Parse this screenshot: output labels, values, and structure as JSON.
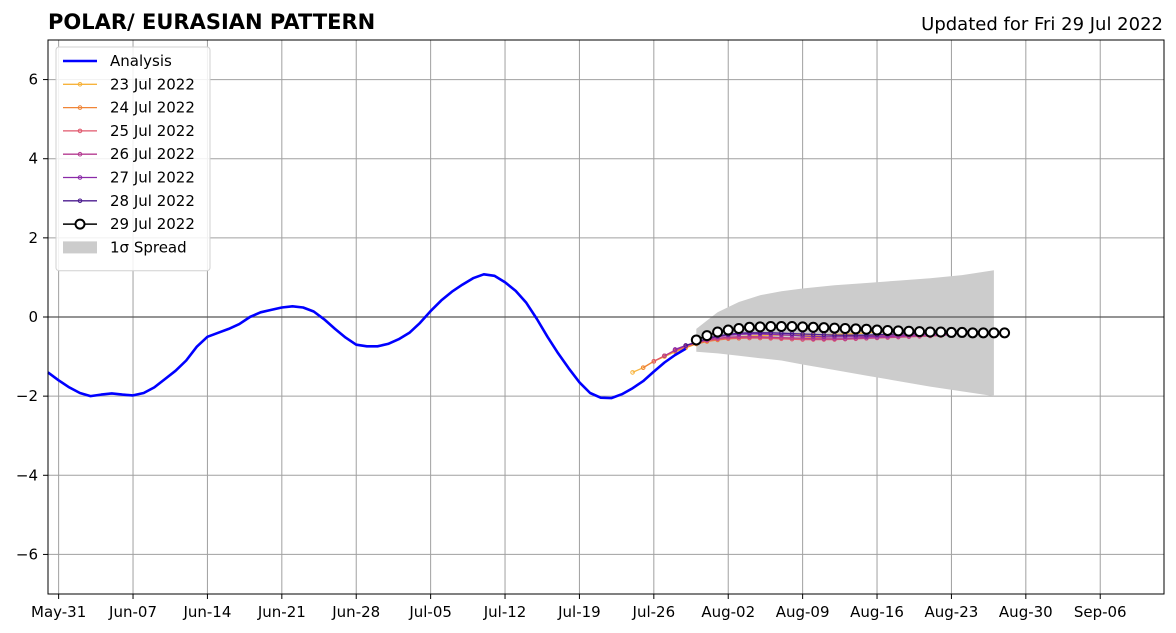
{
  "chart_data": {
    "type": "line",
    "title": "POLAR/ EURASIAN  PATTERN",
    "subtitle": "Updated for Fri 29 Jul 2022",
    "xlabel": "",
    "ylabel": "",
    "ylim": [
      -7,
      7
    ],
    "yticks": [
      -6,
      -4,
      -2,
      0,
      2,
      4,
      6
    ],
    "ytick_labels": [
      "−6",
      "−4",
      "−2",
      "0",
      "2",
      "4",
      "6"
    ],
    "xlim": [
      "2022-05-30",
      "2022-09-12"
    ],
    "xticks": [
      "2022-05-31",
      "2022-06-07",
      "2022-06-14",
      "2022-06-21",
      "2022-06-28",
      "2022-07-05",
      "2022-07-12",
      "2022-07-19",
      "2022-07-26",
      "2022-08-02",
      "2022-08-09",
      "2022-08-16",
      "2022-08-23",
      "2022-08-30",
      "2022-09-06"
    ],
    "xtick_labels": [
      "May-31",
      "Jun-07",
      "Jun-14",
      "Jun-21",
      "Jun-28",
      "Jul-05",
      "Jul-12",
      "Jul-19",
      "Jul-26",
      "Aug-02",
      "Aug-09",
      "Aug-16",
      "Aug-23",
      "Aug-30",
      "Sep-06"
    ],
    "grid": true,
    "zero_line": true,
    "legend_position": "top-left",
    "analysis": {
      "name": "Analysis",
      "color": "#0000ff",
      "points": [
        [
          "2022-05-30",
          -1.4
        ],
        [
          "2022-05-31",
          -1.6
        ],
        [
          "2022-06-01",
          -1.78
        ],
        [
          "2022-06-02",
          -1.92
        ],
        [
          "2022-06-03",
          -2.0
        ],
        [
          "2022-06-04",
          -1.96
        ],
        [
          "2022-06-05",
          -1.93
        ],
        [
          "2022-06-06",
          -1.96
        ],
        [
          "2022-06-07",
          -1.98
        ],
        [
          "2022-06-08",
          -1.92
        ],
        [
          "2022-06-09",
          -1.78
        ],
        [
          "2022-06-10",
          -1.57
        ],
        [
          "2022-06-11",
          -1.36
        ],
        [
          "2022-06-12",
          -1.1
        ],
        [
          "2022-06-13",
          -0.75
        ],
        [
          "2022-06-14",
          -0.5
        ],
        [
          "2022-06-15",
          -0.4
        ],
        [
          "2022-06-16",
          -0.3
        ],
        [
          "2022-06-17",
          -0.18
        ],
        [
          "2022-06-18",
          0.0
        ],
        [
          "2022-06-19",
          0.12
        ],
        [
          "2022-06-20",
          0.18
        ],
        [
          "2022-06-21",
          0.24
        ],
        [
          "2022-06-22",
          0.27
        ],
        [
          "2022-06-23",
          0.24
        ],
        [
          "2022-06-24",
          0.14
        ],
        [
          "2022-06-25",
          -0.06
        ],
        [
          "2022-06-26",
          -0.3
        ],
        [
          "2022-06-27",
          -0.52
        ],
        [
          "2022-06-28",
          -0.7
        ],
        [
          "2022-06-29",
          -0.74
        ],
        [
          "2022-06-30",
          -0.74
        ],
        [
          "2022-07-01",
          -0.68
        ],
        [
          "2022-07-02",
          -0.56
        ],
        [
          "2022-07-03",
          -0.4
        ],
        [
          "2022-07-04",
          -0.15
        ],
        [
          "2022-07-05",
          0.15
        ],
        [
          "2022-07-06",
          0.42
        ],
        [
          "2022-07-07",
          0.64
        ],
        [
          "2022-07-08",
          0.82
        ],
        [
          "2022-07-09",
          0.98
        ],
        [
          "2022-07-10",
          1.08
        ],
        [
          "2022-07-11",
          1.04
        ],
        [
          "2022-07-12",
          0.88
        ],
        [
          "2022-07-13",
          0.66
        ],
        [
          "2022-07-14",
          0.36
        ],
        [
          "2022-07-15",
          -0.05
        ],
        [
          "2022-07-16",
          -0.5
        ],
        [
          "2022-07-17",
          -0.92
        ],
        [
          "2022-07-18",
          -1.3
        ],
        [
          "2022-07-19",
          -1.65
        ],
        [
          "2022-07-20",
          -1.92
        ],
        [
          "2022-07-21",
          -2.04
        ],
        [
          "2022-07-22",
          -2.05
        ],
        [
          "2022-07-23",
          -1.95
        ],
        [
          "2022-07-24",
          -1.8
        ],
        [
          "2022-07-25",
          -1.62
        ],
        [
          "2022-07-26",
          -1.38
        ],
        [
          "2022-07-27",
          -1.15
        ],
        [
          "2022-07-28",
          -0.96
        ],
        [
          "2022-07-29",
          -0.8
        ]
      ]
    },
    "series": [
      {
        "name": "23 Jul 2022",
        "color": "#f7b33b",
        "start": "2022-07-24",
        "values": [
          -1.4,
          -1.28,
          -1.12,
          -1.0,
          -0.88,
          -0.78,
          -0.68,
          -0.62,
          -0.56,
          -0.52,
          -0.5,
          -0.48,
          -0.47,
          -0.46,
          -0.46,
          -0.46,
          -0.46,
          -0.46,
          -0.45,
          -0.44,
          -0.43,
          -0.42,
          -0.4,
          -0.38,
          -0.36,
          -0.35,
          -0.34,
          -0.33
        ]
      },
      {
        "name": "24 Jul 2022",
        "color": "#f08537",
        "start": "2022-07-25",
        "values": [
          -1.28,
          -1.12,
          -0.98,
          -0.86,
          -0.76,
          -0.68,
          -0.62,
          -0.58,
          -0.55,
          -0.54,
          -0.53,
          -0.53,
          -0.53,
          -0.53,
          -0.53,
          -0.53,
          -0.52,
          -0.51,
          -0.5,
          -0.49,
          -0.48,
          -0.47,
          -0.46,
          -0.45,
          -0.44,
          -0.43,
          -0.42,
          -0.41
        ]
      },
      {
        "name": "25 Jul 2022",
        "color": "#e0576c",
        "start": "2022-07-26",
        "values": [
          -1.12,
          -0.98,
          -0.84,
          -0.74,
          -0.66,
          -0.6,
          -0.56,
          -0.54,
          -0.53,
          -0.53,
          -0.53,
          -0.54,
          -0.55,
          -0.56,
          -0.57,
          -0.57,
          -0.57,
          -0.57,
          -0.56,
          -0.55,
          -0.54,
          -0.53,
          -0.52,
          -0.51,
          -0.5,
          -0.49,
          -0.48,
          -0.47
        ]
      },
      {
        "name": "26 Jul 2022",
        "color": "#b43b91",
        "start": "2022-07-27",
        "values": [
          -0.98,
          -0.84,
          -0.72,
          -0.64,
          -0.58,
          -0.54,
          -0.51,
          -0.5,
          -0.5,
          -0.5,
          -0.51,
          -0.52,
          -0.53,
          -0.54,
          -0.55,
          -0.55,
          -0.55,
          -0.55,
          -0.54,
          -0.53,
          -0.52,
          -0.51,
          -0.5,
          -0.49,
          -0.48,
          -0.47,
          -0.46,
          -0.45
        ]
      },
      {
        "name": "27 Jul 2022",
        "color": "#8a2aa8",
        "start": "2022-07-28",
        "values": [
          -0.82,
          -0.72,
          -0.64,
          -0.56,
          -0.5,
          -0.46,
          -0.44,
          -0.43,
          -0.43,
          -0.44,
          -0.45,
          -0.46,
          -0.48,
          -0.49,
          -0.5,
          -0.5,
          -0.5,
          -0.5,
          -0.5,
          -0.49,
          -0.48,
          -0.47,
          -0.46,
          -0.45,
          -0.44,
          -0.43,
          -0.42,
          -0.41
        ]
      },
      {
        "name": "28 Jul 2022",
        "color": "#4b1b8f",
        "start": "2022-07-29",
        "values": [
          -0.72,
          -0.64,
          -0.54,
          -0.48,
          -0.44,
          -0.41,
          -0.4,
          -0.4,
          -0.4,
          -0.41,
          -0.42,
          -0.43,
          -0.44,
          -0.45,
          -0.46,
          -0.46,
          -0.46,
          -0.46,
          -0.45,
          -0.44,
          -0.43,
          -0.42,
          -0.41,
          -0.4,
          -0.39,
          -0.38,
          -0.37,
          -0.36
        ]
      },
      {
        "name": "29 Jul 2022",
        "color": "#000000",
        "marker": "open-circle",
        "start": "2022-07-30",
        "values": [
          -0.58,
          -0.47,
          -0.38,
          -0.33,
          -0.29,
          -0.26,
          -0.25,
          -0.24,
          -0.24,
          -0.24,
          -0.25,
          -0.26,
          -0.27,
          -0.28,
          -0.29,
          -0.3,
          -0.31,
          -0.33,
          -0.34,
          -0.35,
          -0.36,
          -0.37,
          -0.38,
          -0.38,
          -0.39,
          -0.39,
          -0.4,
          -0.4,
          -0.4,
          -0.4
        ]
      }
    ],
    "spread": {
      "name": "1σ Spread",
      "color": "#cccccc",
      "x": [
        "2022-07-30",
        "2022-08-01",
        "2022-08-03",
        "2022-08-05",
        "2022-08-07",
        "2022-08-09",
        "2022-08-12",
        "2022-08-15",
        "2022-08-18",
        "2022-08-21",
        "2022-08-24",
        "2022-08-27"
      ],
      "upper": [
        -0.3,
        0.12,
        0.38,
        0.55,
        0.65,
        0.72,
        0.8,
        0.86,
        0.92,
        0.98,
        1.06,
        1.18
      ],
      "lower": [
        -0.88,
        -0.92,
        -0.98,
        -1.04,
        -1.1,
        -1.2,
        -1.34,
        -1.48,
        -1.62,
        -1.76,
        -1.88,
        -2.0
      ]
    }
  }
}
